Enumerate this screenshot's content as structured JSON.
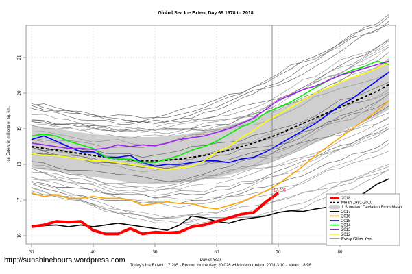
{
  "chart_data": {
    "type": "line",
    "title": "Global Sea Ice Extent Day 69 1978 to 2018",
    "xlabel": "Day of Year",
    "ylabel": "Ice Extent in millions of sq. km.",
    "xlim": [
      29,
      89
    ],
    "ylim": [
      15.75,
      22.0
    ],
    "xticks": [
      30,
      40,
      50,
      60,
      70,
      80
    ],
    "yticks": [
      16,
      17,
      18,
      19,
      20,
      21
    ],
    "grid": true,
    "current_day": 69,
    "current_value_label": "17.205",
    "legend_position": "bottom-right",
    "legend": [
      {
        "label": "2018",
        "color": "#ff0000",
        "style": "thick"
      },
      {
        "label": "Mean 1981-2010",
        "color": "#000000",
        "style": "dashed"
      },
      {
        "label": "1 Standard Deviation From Mean",
        "color": "#cccccc",
        "style": "band"
      },
      {
        "label": "2017",
        "color": "#000000",
        "style": "solid"
      },
      {
        "label": "2016",
        "color": "#ffa500",
        "style": "solid"
      },
      {
        "label": "2015",
        "color": "#0000ff",
        "style": "solid"
      },
      {
        "label": "2014",
        "color": "#00ee00",
        "style": "solid"
      },
      {
        "label": "2013",
        "color": "#a020f0",
        "style": "solid"
      },
      {
        "label": "2012",
        "color": "#ffff00",
        "style": "solid"
      },
      {
        "label": "Every Other Year",
        "color": "#888888",
        "style": "thin"
      }
    ],
    "x": [
      30,
      32,
      34,
      36,
      38,
      40,
      42,
      44,
      46,
      48,
      50,
      52,
      54,
      56,
      58,
      60,
      62,
      64,
      66,
      68,
      70,
      72,
      74,
      76,
      78,
      80,
      82,
      84,
      86,
      88
    ],
    "mean": [
      18.5,
      18.45,
      18.4,
      18.35,
      18.3,
      18.25,
      18.2,
      18.15,
      18.12,
      18.1,
      18.1,
      18.12,
      18.15,
      18.2,
      18.25,
      18.32,
      18.4,
      18.5,
      18.6,
      18.72,
      18.85,
      19.0,
      19.15,
      19.3,
      19.45,
      19.6,
      19.75,
      19.9,
      20.05,
      20.25
    ],
    "std_upper": [
      19.1,
      19.05,
      19.0,
      18.95,
      18.9,
      18.85,
      18.82,
      18.8,
      18.78,
      18.77,
      18.77,
      18.8,
      18.83,
      18.88,
      18.95,
      19.02,
      19.1,
      19.2,
      19.3,
      19.42,
      19.55,
      19.7,
      19.85,
      20.0,
      20.15,
      20.3,
      20.45,
      20.6,
      20.75,
      20.95
    ],
    "std_lower": [
      17.9,
      17.85,
      17.8,
      17.75,
      17.7,
      17.65,
      17.6,
      17.55,
      17.5,
      17.45,
      17.44,
      17.45,
      17.48,
      17.52,
      17.57,
      17.63,
      17.7,
      17.8,
      17.9,
      18.02,
      18.15,
      18.3,
      18.45,
      18.6,
      18.75,
      18.9,
      19.05,
      19.2,
      19.35,
      19.55
    ],
    "series": [
      {
        "name": "2018",
        "color": "#ff0000",
        "width": 4,
        "values": [
          16.25,
          16.3,
          16.4,
          16.38,
          16.4,
          16.15,
          16.05,
          16.05,
          16.2,
          16.05,
          16.1,
          16.08,
          16.1,
          16.25,
          16.3,
          16.4,
          16.5,
          16.6,
          16.65,
          16.95,
          17.2,
          null,
          null,
          null,
          null,
          null,
          null,
          null,
          null,
          null
        ]
      },
      {
        "name": "2017",
        "color": "#000000",
        "width": 1.6,
        "values": [
          16.25,
          16.28,
          16.3,
          16.25,
          16.3,
          16.25,
          16.3,
          16.35,
          16.3,
          16.25,
          16.2,
          16.15,
          16.3,
          16.55,
          16.5,
          16.4,
          16.35,
          16.45,
          16.5,
          16.55,
          16.65,
          16.7,
          16.68,
          16.75,
          16.8,
          16.85,
          17.05,
          17.2,
          17.45,
          17.6
        ]
      },
      {
        "name": "2016",
        "color": "#ffa500",
        "width": 1.6,
        "values": [
          17.2,
          17.1,
          17.15,
          17.05,
          17.05,
          17.1,
          17.05,
          17.05,
          17.0,
          16.85,
          16.9,
          16.95,
          16.9,
          16.9,
          16.8,
          16.75,
          16.85,
          16.95,
          17.1,
          17.25,
          17.45,
          17.7,
          17.95,
          18.25,
          18.5,
          18.75,
          19.0,
          19.25,
          19.5,
          19.8
        ]
      },
      {
        "name": "2015",
        "color": "#0000ff",
        "width": 1.6,
        "values": [
          18.7,
          18.8,
          18.65,
          18.5,
          18.35,
          18.35,
          18.2,
          18.2,
          18.25,
          18.05,
          17.95,
          18.0,
          18.0,
          18.05,
          18.1,
          18.1,
          18.05,
          18.15,
          18.2,
          18.35,
          18.55,
          18.75,
          18.95,
          19.15,
          19.4,
          19.65,
          19.85,
          20.1,
          20.35,
          20.6
        ]
      },
      {
        "name": "2014",
        "color": "#00ee00",
        "width": 1.6,
        "values": [
          18.8,
          18.85,
          18.8,
          18.65,
          18.55,
          18.45,
          18.2,
          18.15,
          18.15,
          18.05,
          18.05,
          18.15,
          18.25,
          18.4,
          18.5,
          18.65,
          18.85,
          19.05,
          19.2,
          19.45,
          19.6,
          19.75,
          19.95,
          20.15,
          20.35,
          20.5,
          20.65,
          20.75,
          20.9,
          20.8
        ]
      },
      {
        "name": "2013",
        "color": "#a020f0",
        "width": 1.6,
        "values": [
          18.6,
          18.55,
          18.5,
          18.45,
          18.45,
          18.42,
          18.45,
          18.55,
          18.5,
          18.55,
          18.52,
          18.6,
          18.7,
          18.75,
          18.8,
          18.9,
          19.0,
          19.15,
          19.3,
          19.55,
          19.8,
          19.95,
          20.1,
          20.2,
          20.35,
          20.5,
          20.6,
          20.7,
          20.8,
          20.9
        ]
      },
      {
        "name": "2012",
        "color": "#ffff00",
        "width": 1.6,
        "values": [
          18.3,
          18.25,
          18.25,
          18.2,
          18.15,
          18.1,
          18.1,
          18.05,
          18.0,
          17.95,
          17.9,
          17.85,
          17.9,
          17.95,
          18.1,
          18.35,
          18.5,
          18.75,
          18.95,
          19.2,
          19.4,
          19.6,
          19.8,
          20.0,
          20.15,
          20.3,
          20.45,
          20.55,
          20.7,
          20.85
        ]
      }
    ],
    "other_years_note": "Every Other Year thin gray lines spread roughly between 16.8 and 21.5"
  },
  "footer": {
    "url": "http://sunshinehours.wordpress.com",
    "stats": "Today's Ice Extent: 17.205  - Record for the day: 20.028 which occurred on 2001 3 10  - Mean: 18.98"
  }
}
